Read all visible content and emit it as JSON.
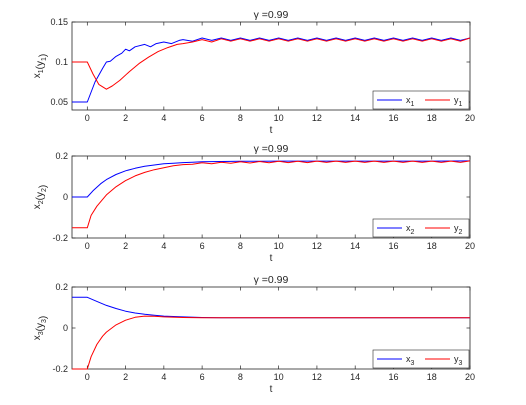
{
  "figure": {
    "colors": {
      "x_series": "#0000ff",
      "y_series": "#ff0000",
      "axes": "#262626",
      "background": "#ffffff"
    }
  },
  "chart_data": [
    {
      "type": "line",
      "title": "γ =0.99",
      "xlabel": "t",
      "ylabel": "x1(y1)",
      "xlim": [
        -0.8,
        20
      ],
      "ylim": [
        0.04,
        0.15
      ],
      "xticks": [
        0,
        2,
        4,
        6,
        8,
        10,
        12,
        14,
        16,
        18,
        20
      ],
      "yticks": [
        0.05,
        0.1,
        0.15
      ],
      "ytick_labels": [
        "0.05",
        "0.1",
        "0.15"
      ],
      "grid": false,
      "legend_placement": "bottom-right",
      "series": [
        {
          "name": "x1",
          "color": "#0000ff",
          "points": [
            [
              -0.8,
              0.05
            ],
            [
              0,
              0.05
            ],
            [
              0.4,
              0.075
            ],
            [
              0.8,
              0.092
            ],
            [
              1.0,
              0.1
            ],
            [
              1.2,
              0.101
            ],
            [
              1.5,
              0.107
            ],
            [
              1.8,
              0.111
            ],
            [
              2.0,
              0.116
            ],
            [
              2.2,
              0.114
            ],
            [
              2.5,
              0.119
            ],
            [
              3.0,
              0.122
            ],
            [
              3.3,
              0.119
            ],
            [
              3.6,
              0.123
            ],
            [
              4.0,
              0.125
            ],
            [
              4.4,
              0.123
            ],
            [
              4.8,
              0.127
            ],
            [
              5.0,
              0.128
            ],
            [
              5.5,
              0.126
            ],
            [
              6.0,
              0.13
            ],
            [
              6.5,
              0.127
            ],
            [
              7.0,
              0.13
            ],
            [
              7.5,
              0.127
            ],
            [
              8.0,
              0.13
            ],
            [
              8.5,
              0.127
            ],
            [
              9.0,
              0.13
            ],
            [
              9.5,
              0.127
            ],
            [
              10.0,
              0.13
            ],
            [
              10.5,
              0.127
            ],
            [
              11.0,
              0.13
            ],
            [
              11.5,
              0.127
            ],
            [
              12.0,
              0.13
            ],
            [
              12.5,
              0.127
            ],
            [
              13.0,
              0.13
            ],
            [
              13.5,
              0.127
            ],
            [
              14.0,
              0.13
            ],
            [
              14.5,
              0.127
            ],
            [
              15.0,
              0.13
            ],
            [
              15.5,
              0.127
            ],
            [
              16.0,
              0.13
            ],
            [
              16.5,
              0.127
            ],
            [
              17.0,
              0.13
            ],
            [
              17.5,
              0.127
            ],
            [
              18.0,
              0.13
            ],
            [
              18.5,
              0.127
            ],
            [
              19.0,
              0.13
            ],
            [
              19.5,
              0.127
            ],
            [
              20.0,
              0.13
            ]
          ]
        },
        {
          "name": "y1",
          "color": "#ff0000",
          "points": [
            [
              -0.8,
              0.1
            ],
            [
              0,
              0.1
            ],
            [
              0.3,
              0.085
            ],
            [
              0.6,
              0.072
            ],
            [
              1.0,
              0.066
            ],
            [
              1.3,
              0.07
            ],
            [
              1.7,
              0.077
            ],
            [
              2.2,
              0.088
            ],
            [
              2.7,
              0.098
            ],
            [
              3.2,
              0.106
            ],
            [
              3.7,
              0.113
            ],
            [
              4.2,
              0.118
            ],
            [
              4.7,
              0.122
            ],
            [
              5.0,
              0.123
            ],
            [
              5.5,
              0.125
            ],
            [
              6.0,
              0.128
            ],
            [
              6.5,
              0.125
            ],
            [
              7.0,
              0.129
            ],
            [
              7.5,
              0.126
            ],
            [
              8.0,
              0.129
            ],
            [
              8.5,
              0.126
            ],
            [
              9.0,
              0.129
            ],
            [
              9.5,
              0.126
            ],
            [
              10.0,
              0.129
            ],
            [
              10.5,
              0.126
            ],
            [
              11.0,
              0.129
            ],
            [
              11.5,
              0.126
            ],
            [
              12.0,
              0.129
            ],
            [
              12.5,
              0.126
            ],
            [
              13.0,
              0.129
            ],
            [
              13.5,
              0.126
            ],
            [
              14.0,
              0.129
            ],
            [
              14.5,
              0.126
            ],
            [
              15.0,
              0.129
            ],
            [
              15.5,
              0.126
            ],
            [
              16.0,
              0.129
            ],
            [
              16.5,
              0.126
            ],
            [
              17.0,
              0.129
            ],
            [
              17.5,
              0.126
            ],
            [
              18.0,
              0.129
            ],
            [
              18.5,
              0.126
            ],
            [
              19.0,
              0.129
            ],
            [
              19.5,
              0.126
            ],
            [
              20.0,
              0.13
            ]
          ]
        }
      ]
    },
    {
      "type": "line",
      "title": "γ =0.99",
      "xlabel": "t",
      "ylabel": "x2(y2)",
      "xlim": [
        -0.8,
        20
      ],
      "ylim": [
        -0.2,
        0.2
      ],
      "xticks": [
        0,
        2,
        4,
        6,
        8,
        10,
        12,
        14,
        16,
        18,
        20
      ],
      "yticks": [
        -0.2,
        0,
        0.2
      ],
      "ytick_labels": [
        "-0.2",
        "0",
        "0.2"
      ],
      "grid": false,
      "legend_placement": "bottom-right",
      "series": [
        {
          "name": "x2",
          "color": "#0000ff",
          "points": [
            [
              -0.8,
              0.0
            ],
            [
              0,
              0.0
            ],
            [
              0.3,
              0.03
            ],
            [
              0.7,
              0.065
            ],
            [
              1.0,
              0.085
            ],
            [
              1.5,
              0.11
            ],
            [
              2.0,
              0.128
            ],
            [
              2.5,
              0.14
            ],
            [
              3.0,
              0.15
            ],
            [
              3.5,
              0.156
            ],
            [
              4.0,
              0.162
            ],
            [
              4.5,
              0.165
            ],
            [
              5.0,
              0.168
            ],
            [
              5.5,
              0.17
            ],
            [
              6.0,
              0.172
            ],
            [
              7.0,
              0.173
            ],
            [
              8.0,
              0.174
            ],
            [
              9.0,
              0.174
            ],
            [
              10.0,
              0.175
            ],
            [
              12.0,
              0.175
            ],
            [
              14.0,
              0.175
            ],
            [
              16.0,
              0.175
            ],
            [
              18.0,
              0.175
            ],
            [
              20.0,
              0.176
            ]
          ]
        },
        {
          "name": "y2",
          "color": "#ff0000",
          "points": [
            [
              -0.8,
              -0.15
            ],
            [
              0,
              -0.15
            ],
            [
              0.2,
              -0.09
            ],
            [
              0.5,
              -0.045
            ],
            [
              1.0,
              0.01
            ],
            [
              1.5,
              0.05
            ],
            [
              2.0,
              0.08
            ],
            [
              2.5,
              0.103
            ],
            [
              3.0,
              0.12
            ],
            [
              3.5,
              0.133
            ],
            [
              4.0,
              0.143
            ],
            [
              4.5,
              0.152
            ],
            [
              5.0,
              0.158
            ],
            [
              5.5,
              0.16
            ],
            [
              6.0,
              0.167
            ],
            [
              6.5,
              0.162
            ],
            [
              7.0,
              0.17
            ],
            [
              7.5,
              0.165
            ],
            [
              8.0,
              0.172
            ],
            [
              8.5,
              0.166
            ],
            [
              9.0,
              0.173
            ],
            [
              9.5,
              0.167
            ],
            [
              10.0,
              0.174
            ],
            [
              10.5,
              0.168
            ],
            [
              11.0,
              0.174
            ],
            [
              11.5,
              0.168
            ],
            [
              12.0,
              0.175
            ],
            [
              12.5,
              0.169
            ],
            [
              13.0,
              0.175
            ],
            [
              13.5,
              0.169
            ],
            [
              14.0,
              0.175
            ],
            [
              14.5,
              0.169
            ],
            [
              15.0,
              0.175
            ],
            [
              15.5,
              0.169
            ],
            [
              16.0,
              0.175
            ],
            [
              16.5,
              0.169
            ],
            [
              17.0,
              0.175
            ],
            [
              17.5,
              0.169
            ],
            [
              18.0,
              0.175
            ],
            [
              18.5,
              0.169
            ],
            [
              19.0,
              0.175
            ],
            [
              19.5,
              0.169
            ],
            [
              20.0,
              0.176
            ]
          ]
        }
      ]
    },
    {
      "type": "line",
      "title": "γ =0.99",
      "xlabel": "t",
      "ylabel": "x3(y3)",
      "xlim": [
        -0.8,
        20
      ],
      "ylim": [
        -0.2,
        0.2
      ],
      "xticks": [
        0,
        2,
        4,
        6,
        8,
        10,
        12,
        14,
        16,
        18,
        20
      ],
      "yticks": [
        -0.2,
        0,
        0.2
      ],
      "ytick_labels": [
        "-0.2",
        "0",
        "0.2"
      ],
      "grid": false,
      "legend_placement": "bottom-right",
      "series": [
        {
          "name": "x3",
          "color": "#0000ff",
          "points": [
            [
              -0.8,
              0.15
            ],
            [
              0,
              0.15
            ],
            [
              0.5,
              0.13
            ],
            [
              1.0,
              0.11
            ],
            [
              1.5,
              0.095
            ],
            [
              2.0,
              0.082
            ],
            [
              2.5,
              0.073
            ],
            [
              3.0,
              0.067
            ],
            [
              3.5,
              0.062
            ],
            [
              4.0,
              0.058
            ],
            [
              5.0,
              0.054
            ],
            [
              6.0,
              0.051
            ],
            [
              7.0,
              0.05
            ],
            [
              8.0,
              0.05
            ],
            [
              10.0,
              0.05
            ],
            [
              12.0,
              0.05
            ],
            [
              14.0,
              0.05
            ],
            [
              16.0,
              0.05
            ],
            [
              18.0,
              0.05
            ],
            [
              20.0,
              0.05
            ]
          ]
        },
        {
          "name": "y3",
          "color": "#ff0000",
          "points": [
            [
              -0.8,
              -0.2
            ],
            [
              0,
              -0.2
            ],
            [
              0.2,
              -0.14
            ],
            [
              0.5,
              -0.08
            ],
            [
              0.8,
              -0.04
            ],
            [
              1.0,
              -0.02
            ],
            [
              1.5,
              0.015
            ],
            [
              2.0,
              0.038
            ],
            [
              2.5,
              0.052
            ],
            [
              3.0,
              0.058
            ],
            [
              3.5,
              0.057
            ],
            [
              4.0,
              0.054
            ],
            [
              5.0,
              0.051
            ],
            [
              6.0,
              0.05
            ],
            [
              7.0,
              0.05
            ],
            [
              8.0,
              0.05
            ],
            [
              10.0,
              0.05
            ],
            [
              12.0,
              0.05
            ],
            [
              14.0,
              0.05
            ],
            [
              16.0,
              0.05
            ],
            [
              18.0,
              0.05
            ],
            [
              20.0,
              0.05
            ]
          ]
        }
      ]
    }
  ]
}
